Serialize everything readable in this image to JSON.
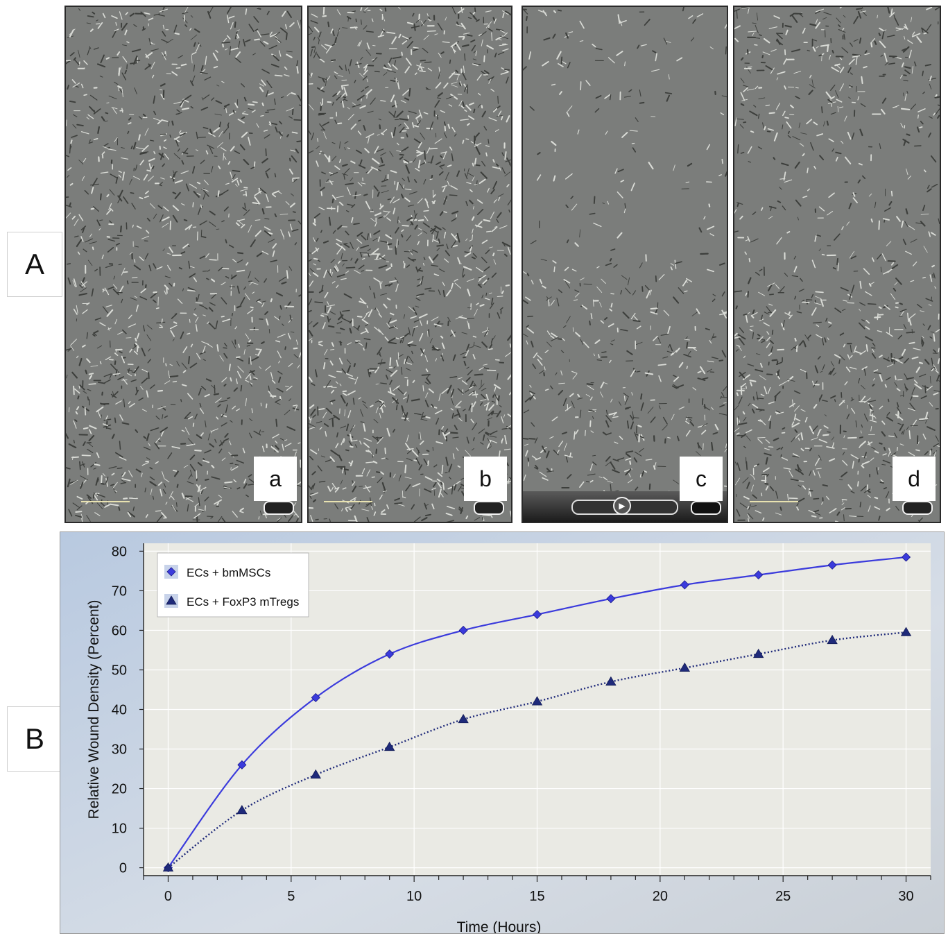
{
  "panel_labels": {
    "a": "A",
    "b": "B"
  },
  "micrographs": [
    {
      "letter": "a",
      "overlay": "scalebar"
    },
    {
      "letter": "b",
      "overlay": "scalebar"
    },
    {
      "letter": "c",
      "overlay": "video-player-controls"
    },
    {
      "letter": "d",
      "overlay": "scalebar"
    }
  ],
  "chart_data": {
    "type": "line",
    "title": "",
    "xlabel": "Time (Hours)",
    "ylabel": "Relative Wound Density (Percent)",
    "xlim": [
      -1,
      31
    ],
    "ylim": [
      -2,
      82
    ],
    "x_ticks": [
      0,
      5,
      10,
      15,
      20,
      25,
      30
    ],
    "y_ticks": [
      0,
      10,
      20,
      30,
      40,
      50,
      60,
      70,
      80
    ],
    "grid": true,
    "legend_position": "top-left",
    "x": [
      0,
      3,
      6,
      9,
      12,
      15,
      18,
      21,
      24,
      27,
      30
    ],
    "series": [
      {
        "name": "ECs + bmMSCs",
        "marker": "diamond",
        "line": "solid",
        "color": "#3b3bdc",
        "values": [
          0,
          26,
          43,
          54,
          60,
          64,
          68,
          71.5,
          74,
          76.5,
          78.5
        ]
      },
      {
        "name": "ECs + FoxP3 mTregs",
        "marker": "triangle",
        "line": "dotted",
        "color": "#1f2a7a",
        "values": [
          0,
          14.5,
          23.5,
          30.5,
          37.5,
          42,
          47,
          50.5,
          54,
          57.5,
          59.5
        ]
      }
    ],
    "colors": {
      "plot_background": "#eaeae4",
      "frame_gradient": "#c4d2e4",
      "grid": "#ffffff"
    }
  }
}
